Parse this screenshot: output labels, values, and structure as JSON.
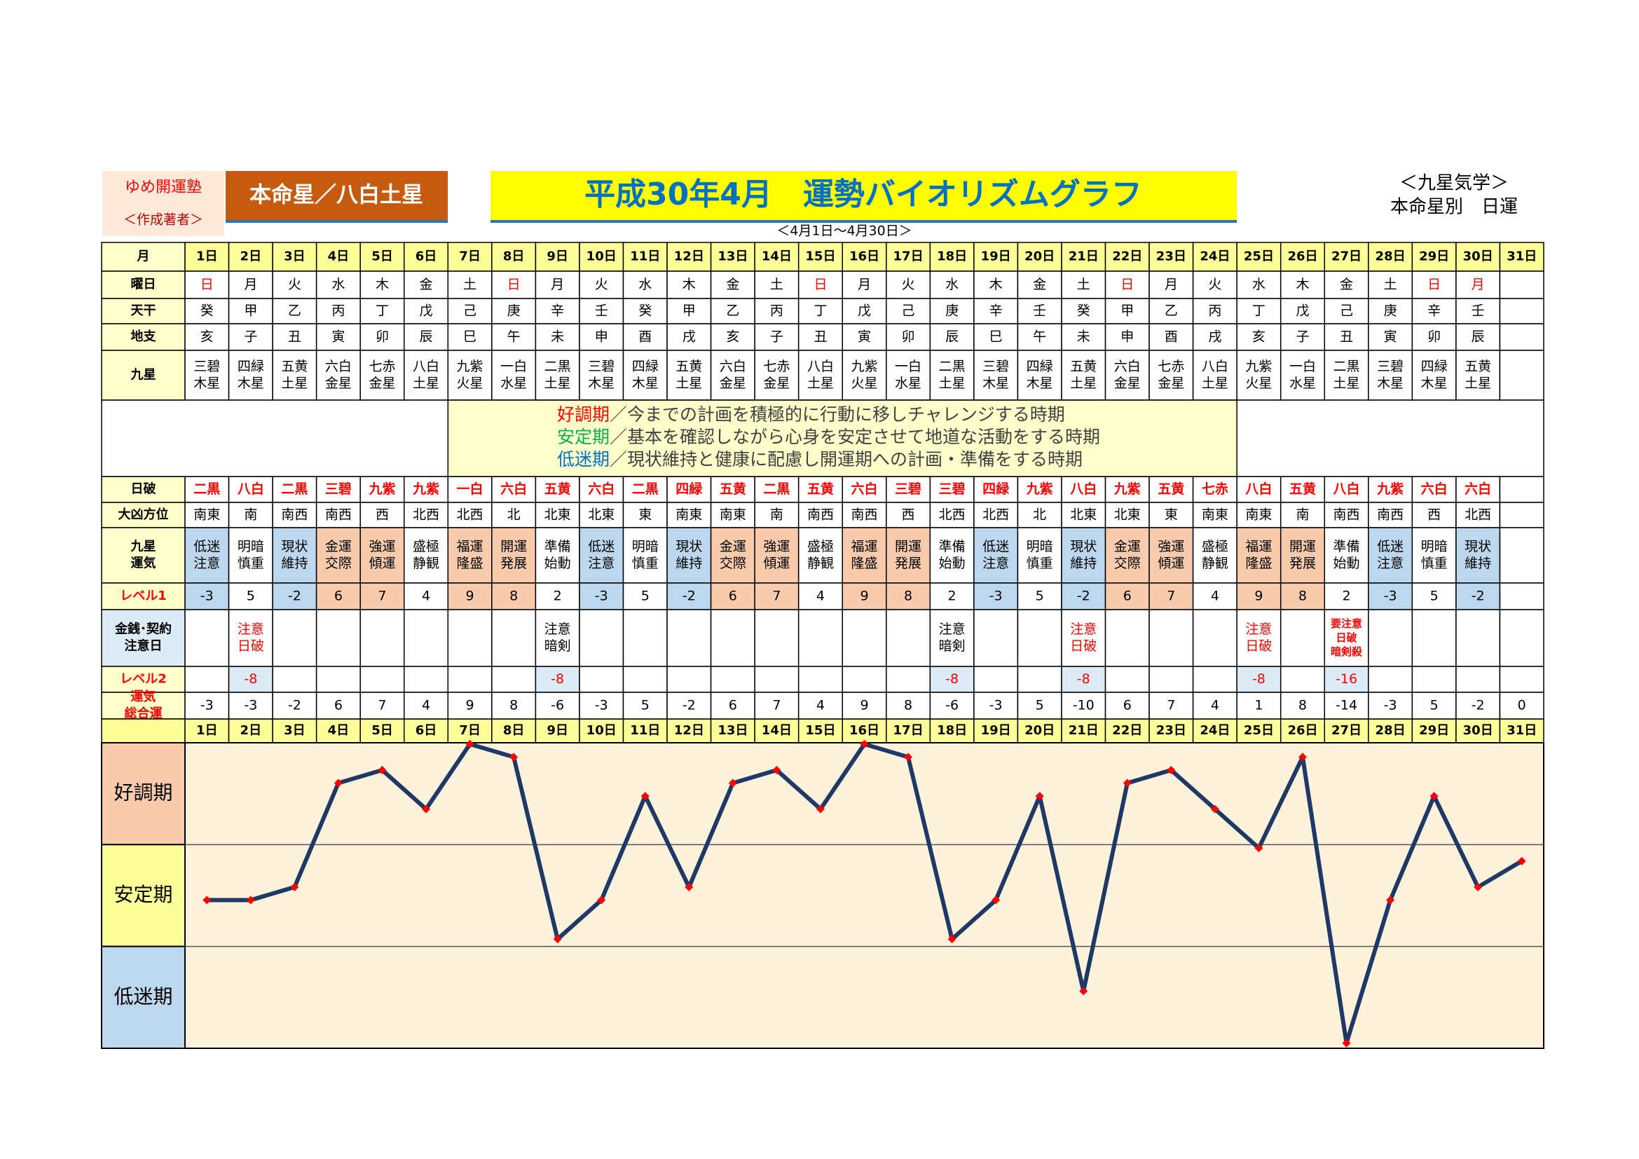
{
  "header": {
    "school": "ゆめ開運塾",
    "author": "＜作成著者＞",
    "star": "本命星／八白土星",
    "title": "平成30年4月　運勢バイオリズムグラフ",
    "period": "＜4月1日～4月30日＞",
    "category": "＜九星気学＞",
    "subtitle": "本命星別　日運"
  },
  "table": {
    "labels": {
      "day": [
        "月"
      ],
      "weekday": [
        "曜日"
      ],
      "stem": [
        "天干"
      ],
      "branch": [
        "地支"
      ],
      "star": [
        "九星"
      ],
      "hajo": [
        "日破"
      ],
      "direction": [
        "大凶方位"
      ],
      "fortune": [
        "九星",
        "運気"
      ],
      "level1": [
        "レベル1"
      ],
      "notes": [
        "金銭･契約",
        "注意日"
      ],
      "level2": [
        "レベル2"
      ],
      "total": [
        "運気",
        "総合運"
      ]
    },
    "days": [
      "1日",
      "2日",
      "3日",
      "4日",
      "5日",
      "6日",
      "7日",
      "8日",
      "9日",
      "10日",
      "11日",
      "12日",
      "13日",
      "14日",
      "15日",
      "16日",
      "17日",
      "18日",
      "19日",
      "20日",
      "21日",
      "22日",
      "23日",
      "24日",
      "25日",
      "26日",
      "27日",
      "28日",
      "29日",
      "30日",
      "31日"
    ],
    "weekday": [
      "日",
      "月",
      "火",
      "水",
      "木",
      "金",
      "土",
      "日",
      "月",
      "火",
      "水",
      "木",
      "金",
      "土",
      "日",
      "月",
      "火",
      "水",
      "木",
      "金",
      "土",
      "日",
      "月",
      "火",
      "水",
      "木",
      "金",
      "土",
      "日",
      "月"
    ],
    "weekday_colors": [
      "#ff0000",
      "#000000",
      "#000000",
      "#000000",
      "#000000",
      "#000000",
      "#000000",
      "#ff0000",
      "#000000",
      "#000000",
      "#000000",
      "#000000",
      "#000000",
      "#000000",
      "#ff0000",
      "#000000",
      "#000000",
      "#000000",
      "#000000",
      "#000000",
      "#000000",
      "#ff0000",
      "#000000",
      "#000000",
      "#000000",
      "#000000",
      "#000000",
      "#000000",
      "#ff0000",
      "#ff0000"
    ],
    "stem": [
      "癸",
      "甲",
      "乙",
      "丙",
      "丁",
      "戊",
      "己",
      "庚",
      "辛",
      "壬",
      "癸",
      "甲",
      "乙",
      "丙",
      "丁",
      "戊",
      "己",
      "庚",
      "辛",
      "壬",
      "癸",
      "甲",
      "乙",
      "丙",
      "丁",
      "戊",
      "己",
      "庚",
      "辛",
      "壬"
    ],
    "branch": [
      "亥",
      "子",
      "丑",
      "寅",
      "卯",
      "辰",
      "巳",
      "午",
      "未",
      "申",
      "酉",
      "戌",
      "亥",
      "子",
      "丑",
      "寅",
      "卯",
      "辰",
      "巳",
      "午",
      "未",
      "申",
      "酉",
      "戌",
      "亥",
      "子",
      "丑",
      "寅",
      "卯",
      "辰"
    ],
    "star": [
      [
        "三碧",
        "木星"
      ],
      [
        "四緑",
        "木星"
      ],
      [
        "五黄",
        "土星"
      ],
      [
        "六白",
        "金星"
      ],
      [
        "七赤",
        "金星"
      ],
      [
        "八白",
        "土星"
      ],
      [
        "九紫",
        "火星"
      ],
      [
        "一白",
        "水星"
      ],
      [
        "二黒",
        "土星"
      ],
      [
        "三碧",
        "木星"
      ],
      [
        "四緑",
        "木星"
      ],
      [
        "五黄",
        "土星"
      ],
      [
        "六白",
        "金星"
      ],
      [
        "七赤",
        "金星"
      ],
      [
        "八白",
        "土星"
      ],
      [
        "九紫",
        "火星"
      ],
      [
        "一白",
        "水星"
      ],
      [
        "二黒",
        "土星"
      ],
      [
        "三碧",
        "木星"
      ],
      [
        "四緑",
        "木星"
      ],
      [
        "五黄",
        "土星"
      ],
      [
        "六白",
        "金星"
      ],
      [
        "七赤",
        "金星"
      ],
      [
        "八白",
        "土星"
      ],
      [
        "九紫",
        "火星"
      ],
      [
        "一白",
        "水星"
      ],
      [
        "二黒",
        "土星"
      ],
      [
        "三碧",
        "木星"
      ],
      [
        "四緑",
        "木星"
      ],
      [
        "五黄",
        "土星"
      ]
    ],
    "hajo": [
      "二黒",
      "八白",
      "二黒",
      "三碧",
      "九紫",
      "九紫",
      "一白",
      "六白",
      "五黄",
      "六白",
      "二黒",
      "四緑",
      "五黄",
      "二黒",
      "五黄",
      "六白",
      "三碧",
      "三碧",
      "四緑",
      "九紫",
      "八白",
      "九紫",
      "五黄",
      "七赤",
      "八白",
      "五黄",
      "八白",
      "九紫",
      "六白",
      "六白"
    ],
    "direction": [
      "南東",
      "南",
      "南西",
      "南西",
      "西",
      "北西",
      "北西",
      "北",
      "北東",
      "北東",
      "東",
      "南東",
      "南東",
      "南",
      "南西",
      "南西",
      "西",
      "北西",
      "北西",
      "北",
      "北東",
      "北東",
      "東",
      "南東",
      "南東",
      "南",
      "南西",
      "南西",
      "西",
      "北西"
    ],
    "fortune": [
      [
        "低迷",
        "注意"
      ],
      [
        "明暗",
        "慎重"
      ],
      [
        "現状",
        "維持"
      ],
      [
        "金運",
        "交際"
      ],
      [
        "強運",
        "傾運"
      ],
      [
        "盛極",
        "静観"
      ],
      [
        "福運",
        "隆盛"
      ],
      [
        "開運",
        "発展"
      ],
      [
        "準備",
        "始動"
      ],
      [
        "低迷",
        "注意"
      ],
      [
        "明暗",
        "慎重"
      ],
      [
        "現状",
        "維持"
      ],
      [
        "金運",
        "交際"
      ],
      [
        "強運",
        "傾運"
      ],
      [
        "盛極",
        "静観"
      ],
      [
        "福運",
        "隆盛"
      ],
      [
        "開運",
        "発展"
      ],
      [
        "準備",
        "始動"
      ],
      [
        "低迷",
        "注意"
      ],
      [
        "明暗",
        "慎重"
      ],
      [
        "現状",
        "維持"
      ],
      [
        "金運",
        "交際"
      ],
      [
        "強運",
        "傾運"
      ],
      [
        "盛極",
        "静観"
      ],
      [
        "福運",
        "隆盛"
      ],
      [
        "開運",
        "発展"
      ],
      [
        "準備",
        "始動"
      ],
      [
        "低迷",
        "注意"
      ],
      [
        "明暗",
        "慎重"
      ],
      [
        "現状",
        "維持"
      ]
    ],
    "fortune_bg": [
      "#bdd7ee",
      "#ffffff",
      "#bdd7ee",
      "#f8cbad",
      "#f8cbad",
      "#ffffff",
      "#f8cbad",
      "#f8cbad",
      "#ffffff",
      "#bdd7ee",
      "#ffffff",
      "#bdd7ee",
      "#f8cbad",
      "#f8cbad",
      "#ffffff",
      "#f8cbad",
      "#f8cbad",
      "#ffffff",
      "#bdd7ee",
      "#ffffff",
      "#bdd7ee",
      "#f8cbad",
      "#f8cbad",
      "#ffffff",
      "#f8cbad",
      "#f8cbad",
      "#ffffff",
      "#bdd7ee",
      "#ffffff",
      "#bdd7ee"
    ],
    "level1": [
      -3,
      5,
      -2,
      6,
      7,
      4,
      9,
      8,
      2,
      -3,
      5,
      -2,
      6,
      7,
      4,
      9,
      8,
      2,
      -3,
      5,
      -2,
      6,
      7,
      4,
      9,
      8,
      2,
      -3,
      5,
      -2
    ],
    "notes": [
      null,
      {
        "lines": [
          "注意",
          "日破"
        ],
        "color": "#ff0000"
      },
      null,
      null,
      null,
      null,
      null,
      null,
      {
        "lines": [
          "注意",
          "暗剣"
        ],
        "color": "#000000"
      },
      null,
      null,
      null,
      null,
      null,
      null,
      null,
      null,
      {
        "lines": [
          "注意",
          "暗剣"
        ],
        "color": "#000000"
      },
      null,
      null,
      {
        "lines": [
          "注意",
          "日破"
        ],
        "color": "#ff0000"
      },
      null,
      null,
      null,
      {
        "lines": [
          "注意",
          "日破"
        ],
        "color": "#ff0000"
      },
      null,
      {
        "lines": [
          "要注意",
          "日破",
          "暗剣殺"
        ],
        "color": "#ff0000"
      },
      null,
      null,
      null
    ],
    "level2": [
      null,
      -8,
      null,
      null,
      null,
      null,
      null,
      null,
      -8,
      null,
      null,
      null,
      null,
      null,
      null,
      null,
      null,
      -8,
      null,
      null,
      -8,
      null,
      null,
      null,
      -8,
      null,
      -16,
      null,
      null,
      null
    ]
  },
  "legend": [
    {
      "term": "好調期",
      "text": "／今までの計画を積極的に行動に移しチャレンジする時期",
      "color": "#ff0000"
    },
    {
      "term": "安定期",
      "text": "／基本を確認しながら心身を安定させて地道な活動をする時期",
      "color": "#00b050"
    },
    {
      "term": "低迷期",
      "text": "／現状維持と健康に配慮し開運期への計画・準備をする時期",
      "color": "#0070c0"
    }
  ],
  "chart_data": {
    "type": "line",
    "categories": [
      "1日",
      "2日",
      "3日",
      "4日",
      "5日",
      "6日",
      "7日",
      "8日",
      "9日",
      "10日",
      "11日",
      "12日",
      "13日",
      "14日",
      "15日",
      "16日",
      "17日",
      "18日",
      "19日",
      "20日",
      "21日",
      "22日",
      "23日",
      "24日",
      "25日",
      "26日",
      "27日",
      "28日",
      "29日",
      "30日",
      "31日"
    ],
    "values": [
      -3,
      -3,
      -2,
      6,
      7,
      4,
      9,
      8,
      -6,
      -3,
      5,
      -2,
      6,
      7,
      4,
      9,
      8,
      -6,
      -3,
      5,
      -10,
      6,
      7,
      4,
      1,
      8,
      -14,
      -3,
      5,
      -2,
      0
    ],
    "color": "#1f3864",
    "marker_color": "#ff0000",
    "ylim": [
      -14.4,
      9.1
    ],
    "bands": [
      {
        "name": "好調期",
        "color": "#f8cbad"
      },
      {
        "name": "安定期",
        "color": "#ffff99"
      },
      {
        "name": "低迷期",
        "color": "#bdd7ee"
      }
    ]
  }
}
